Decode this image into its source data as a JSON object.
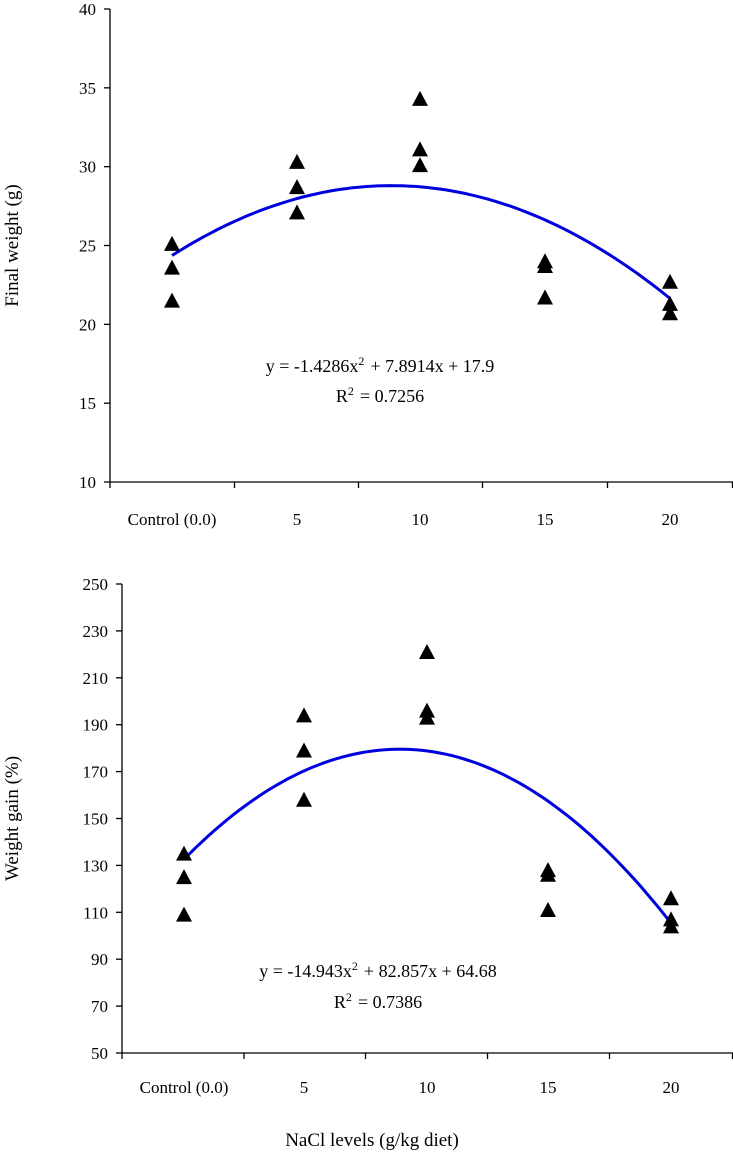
{
  "chart_data": [
    {
      "type": "scatter",
      "x_categories": [
        "Control (0.0)",
        "5",
        "10",
        "15",
        "20"
      ],
      "x_values": [
        0,
        5,
        10,
        15,
        20
      ],
      "ylabel": "Final weight (g)",
      "xlabel": "",
      "ylim": [
        10,
        40
      ],
      "yticks": [
        10,
        15,
        20,
        25,
        30,
        35,
        40
      ],
      "points": [
        {
          "x": 0,
          "y": 25.1
        },
        {
          "x": 0,
          "y": 23.6
        },
        {
          "x": 0,
          "y": 21.5
        },
        {
          "x": 5,
          "y": 30.3
        },
        {
          "x": 5,
          "y": 28.7
        },
        {
          "x": 5,
          "y": 27.1
        },
        {
          "x": 10,
          "y": 34.3
        },
        {
          "x": 10,
          "y": 31.1
        },
        {
          "x": 10,
          "y": 30.1
        },
        {
          "x": 15,
          "y": 24.0
        },
        {
          "x": 15,
          "y": 23.7
        },
        {
          "x": 15,
          "y": 21.7
        },
        {
          "x": 20,
          "y": 22.7
        },
        {
          "x": 20,
          "y": 21.3
        },
        {
          "x": 20,
          "y": 20.7
        }
      ],
      "trendline": {
        "type": "polynomial",
        "a": -1.4286,
        "b": 7.8914,
        "c": 17.9
      },
      "equation_text": "y = -1.4286x² + 7.8914x + 17.9",
      "r2_text": "R² = 0.7256"
    },
    {
      "type": "scatter",
      "x_categories": [
        "Control (0.0)",
        "5",
        "10",
        "15",
        "20"
      ],
      "x_values": [
        0,
        5,
        10,
        15,
        20
      ],
      "ylabel": "Weight gain (%)",
      "xlabel": "NaCl levels (g/kg diet)",
      "ylim": [
        50,
        250
      ],
      "yticks": [
        50,
        70,
        90,
        110,
        130,
        150,
        170,
        190,
        210,
        230,
        250
      ],
      "points": [
        {
          "x": 0,
          "y": 135
        },
        {
          "x": 0,
          "y": 125
        },
        {
          "x": 0,
          "y": 109
        },
        {
          "x": 5,
          "y": 194
        },
        {
          "x": 5,
          "y": 179
        },
        {
          "x": 5,
          "y": 158
        },
        {
          "x": 10,
          "y": 221
        },
        {
          "x": 10,
          "y": 196
        },
        {
          "x": 10,
          "y": 193
        },
        {
          "x": 15,
          "y": 128
        },
        {
          "x": 15,
          "y": 126
        },
        {
          "x": 15,
          "y": 111
        },
        {
          "x": 20,
          "y": 116
        },
        {
          "x": 20,
          "y": 107
        },
        {
          "x": 20,
          "y": 104
        }
      ],
      "trendline": {
        "type": "polynomial",
        "a": -14.943,
        "b": 82.857,
        "c": 64.68
      },
      "equation_text": "y = -14.943x² + 82.857x + 64.68",
      "r2_text": "R² = 0.7386"
    }
  ]
}
